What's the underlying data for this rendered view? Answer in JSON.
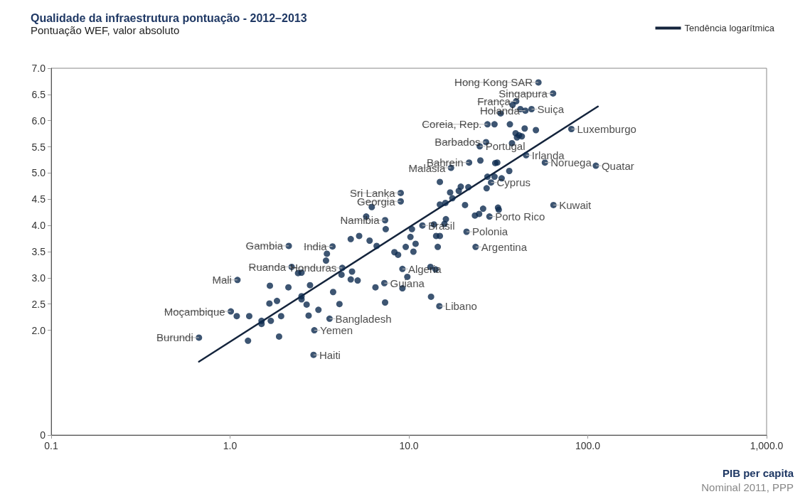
{
  "chart_data": {
    "type": "scatter",
    "title": "Qualidade da infraestrutura pontuação - 2012–2013",
    "subtitle": "Pontuação WEF, valor absoluto",
    "xlabel": "PIB per capita",
    "log": "x",
    "grid": false,
    "legend": "top right",
    "marker": "circle",
    "xlim": [
      0.1,
      1000
    ],
    "xticks": [
      0.1,
      {
        "value": 1,
        "label": "1.0"
      },
      {
        "value": 10,
        "label": "10.0"
      },
      {
        "value": 100,
        "label": "100.0"
      },
      {
        "value": 1000,
        "label": "1,000.0"
      }
    ],
    "ylim": [
      0,
      7
    ],
    "yticks": [
      0,
      {
        "value": 2,
        "label": "2.0"
      },
      {
        "value": 2.5,
        "label": "2.5"
      },
      {
        "value": 3,
        "label": "3.0"
      },
      {
        "value": 3.5,
        "label": "3.5"
      },
      {
        "value": 4,
        "label": "4.0"
      },
      {
        "value": 4.5,
        "label": "4.5"
      },
      {
        "value": 5,
        "label": "5.0"
      },
      {
        "value": 5.5,
        "label": "5.5"
      },
      {
        "value": 6,
        "label": "6.0"
      },
      {
        "value": 6.5,
        "label": "6.5"
      },
      {
        "value": 7,
        "label": "7.0"
      }
    ],
    "series": [
      {
        "color": "#0d2a4f",
        "x": [
          2.13,
          3.74,
          3.48,
          3.44,
          2.21,
          2.4,
          2.51,
          4.24,
          4.81,
          4.2,
          4.73,
          5.17,
          1.1,
          1.67,
          2.12,
          2.8,
          3.77,
          2.51,
          2.51,
          1.83,
          1.66,
          2.68,
          4.09,
          3.12,
          1.01,
          1.09,
          1.28,
          1.5,
          1.5,
          1.69,
          1.93,
          2.75,
          3.6,
          2.96,
          0.67,
          1.26,
          1.88,
          2.93,
          4.73,
          5.27,
          6.2,
          5.77,
          7.36,
          7.42,
          20.6,
          26,
          31.8,
          23.4,
          24.7,
          28.2,
          16.1,
          15.8,
          13.8,
          11.9,
          10.4,
          21,
          14.2,
          14.9,
          10.2,
          6.03,
          6.6,
          10.9,
          9.6,
          14.5,
          23.6,
          8.3,
          8.7,
          10.6,
          9.2,
          13.2,
          14.1,
          9.8,
          7.29,
          6.5,
          9.2,
          13.3,
          14.8,
          7.36,
          53,
          64,
          39.8,
          38,
          42,
          44.8,
          48.5,
          32.6,
          27.5,
          30.1,
          36.7,
          44.4,
          51.3,
          39.5,
          41.3,
          42.8,
          40.2,
          81,
          27,
          24.9,
          37.7,
          45.2,
          21.7,
          25.1,
          30.4,
          31.2,
          57.6,
          111,
          17.2,
          36.4,
          27.5,
          30.1,
          33,
          14.9,
          28.8,
          19.5,
          21.5,
          17,
          19,
          27.2,
          9,
          9,
          17.5,
          14.9,
          16,
          31.5,
          64.3
        ],
        "values": [
          3.61,
          3.6,
          3.46,
          3.33,
          3.21,
          3.09,
          3.1,
          3.19,
          3.12,
          3.06,
          2.97,
          2.95,
          2.96,
          2.85,
          2.82,
          2.86,
          2.73,
          2.65,
          2.59,
          2.56,
          2.51,
          2.49,
          2.5,
          2.39,
          2.36,
          2.27,
          2.27,
          2.18,
          2.12,
          2.18,
          2.27,
          2.28,
          2.22,
          2,
          1.86,
          1.8,
          1.88,
          1.53,
          3.74,
          3.8,
          4.35,
          4.17,
          4.1,
          3.93,
          4.39,
          4.32,
          4.3,
          4.19,
          4.22,
          4.17,
          4.12,
          4.03,
          4.02,
          4,
          3.93,
          3.88,
          3.8,
          3.8,
          3.78,
          3.71,
          3.61,
          3.65,
          3.59,
          3.59,
          3.59,
          3.49,
          3.44,
          3.5,
          3.17,
          3.21,
          3.16,
          3.02,
          2.9,
          2.82,
          2.8,
          2.64,
          2.46,
          2.53,
          6.73,
          6.52,
          6.37,
          6.3,
          6.22,
          6.19,
          6.22,
          6.14,
          5.93,
          5.93,
          5.93,
          5.85,
          5.82,
          5.76,
          5.72,
          5.7,
          5.68,
          5.84,
          5.59,
          5.51,
          5.57,
          5.34,
          5.2,
          5.24,
          5.19,
          5.2,
          5.2,
          5.14,
          5.1,
          5.04,
          4.93,
          4.93,
          4.9,
          4.83,
          4.82,
          4.74,
          4.73,
          4.63,
          4.66,
          4.71,
          4.62,
          4.46,
          4.52,
          4.4,
          4.43,
          4.34,
          4.39
        ]
      },
      {
        "type": "line",
        "marker": "none",
        "name": "Tendência logarítmica",
        "color": "#14243c",
        "x": [
          0.67,
          114
        ],
        "values": [
          1.4,
          6.27
        ]
      }
    ],
    "annotations": [
      {
        "text": "Gambia",
        "x": 2.13,
        "y": 3.61
      },
      {
        "text": "India",
        "x": 3.74,
        "y": 3.6
      },
      {
        "text": "Ruanda",
        "x": 2.21,
        "y": 3.21
      },
      {
        "text": "Honduras",
        "x": 4.24,
        "y": 3.19
      },
      {
        "text": "Mali",
        "x": 1.1,
        "y": 2.96
      },
      {
        "text": "Moçambique",
        "x": 1.01,
        "y": 2.36
      },
      {
        "text": "Bangladesh",
        "x": 3.6,
        "y": 2.22
      },
      {
        "text": "Yemen",
        "x": 2.96,
        "y": 2
      },
      {
        "text": "Burundi",
        "x": 0.67,
        "y": 1.86
      },
      {
        "text": "Haiti",
        "x": 2.93,
        "y": 1.53
      },
      {
        "text": "Namibia",
        "x": 7.36,
        "y": 4.1
      },
      {
        "text": "Porto Rico",
        "x": 28.2,
        "y": 4.17
      },
      {
        "text": "Brasil",
        "x": 11.9,
        "y": 4
      },
      {
        "text": "Polonia",
        "x": 21,
        "y": 3.88
      },
      {
        "text": "Argentina",
        "x": 23.6,
        "y": 3.59
      },
      {
        "text": "Algeria",
        "x": 9.2,
        "y": 3.17
      },
      {
        "text": "Guiana",
        "x": 7.29,
        "y": 2.9
      },
      {
        "text": "Libano",
        "x": 14.8,
        "y": 2.46
      },
      {
        "text": "Hong Kong SAR",
        "x": 53,
        "y": 6.73
      },
      {
        "text": "Singapura",
        "x": 64,
        "y": 6.52
      },
      {
        "text": "França",
        "x": 39.8,
        "y": 6.37
      },
      {
        "text": "Holanda",
        "x": 44.8,
        "y": 6.19
      },
      {
        "text": "Suiça",
        "x": 48.5,
        "y": 6.22
      },
      {
        "text": "Coreia, Rep.",
        "x": 27.5,
        "y": 5.93
      },
      {
        "text": "Luxemburgo",
        "x": 81,
        "y": 5.84
      },
      {
        "text": "Barbados",
        "x": 27,
        "y": 5.59
      },
      {
        "text": "Portugal",
        "x": 24.9,
        "y": 5.51
      },
      {
        "text": "Irlanda",
        "x": 45.2,
        "y": 5.34
      },
      {
        "text": "Bahrein",
        "x": 21.7,
        "y": 5.2
      },
      {
        "text": "Noruega",
        "x": 57.6,
        "y": 5.2
      },
      {
        "text": "Quatar",
        "x": 111,
        "y": 5.14
      },
      {
        "text": "Malasia",
        "x": 17.2,
        "y": 5.1
      },
      {
        "text": "Cyprus",
        "x": 28.8,
        "y": 4.82
      },
      {
        "text": "Sri Lanka",
        "x": 9,
        "y": 4.62
      },
      {
        "text": "Georgia",
        "x": 9,
        "y": 4.46
      },
      {
        "text": "Kuwait",
        "x": 64.3,
        "y": 4.39
      },
      "Nominal 2011, PPP"
    ]
  }
}
